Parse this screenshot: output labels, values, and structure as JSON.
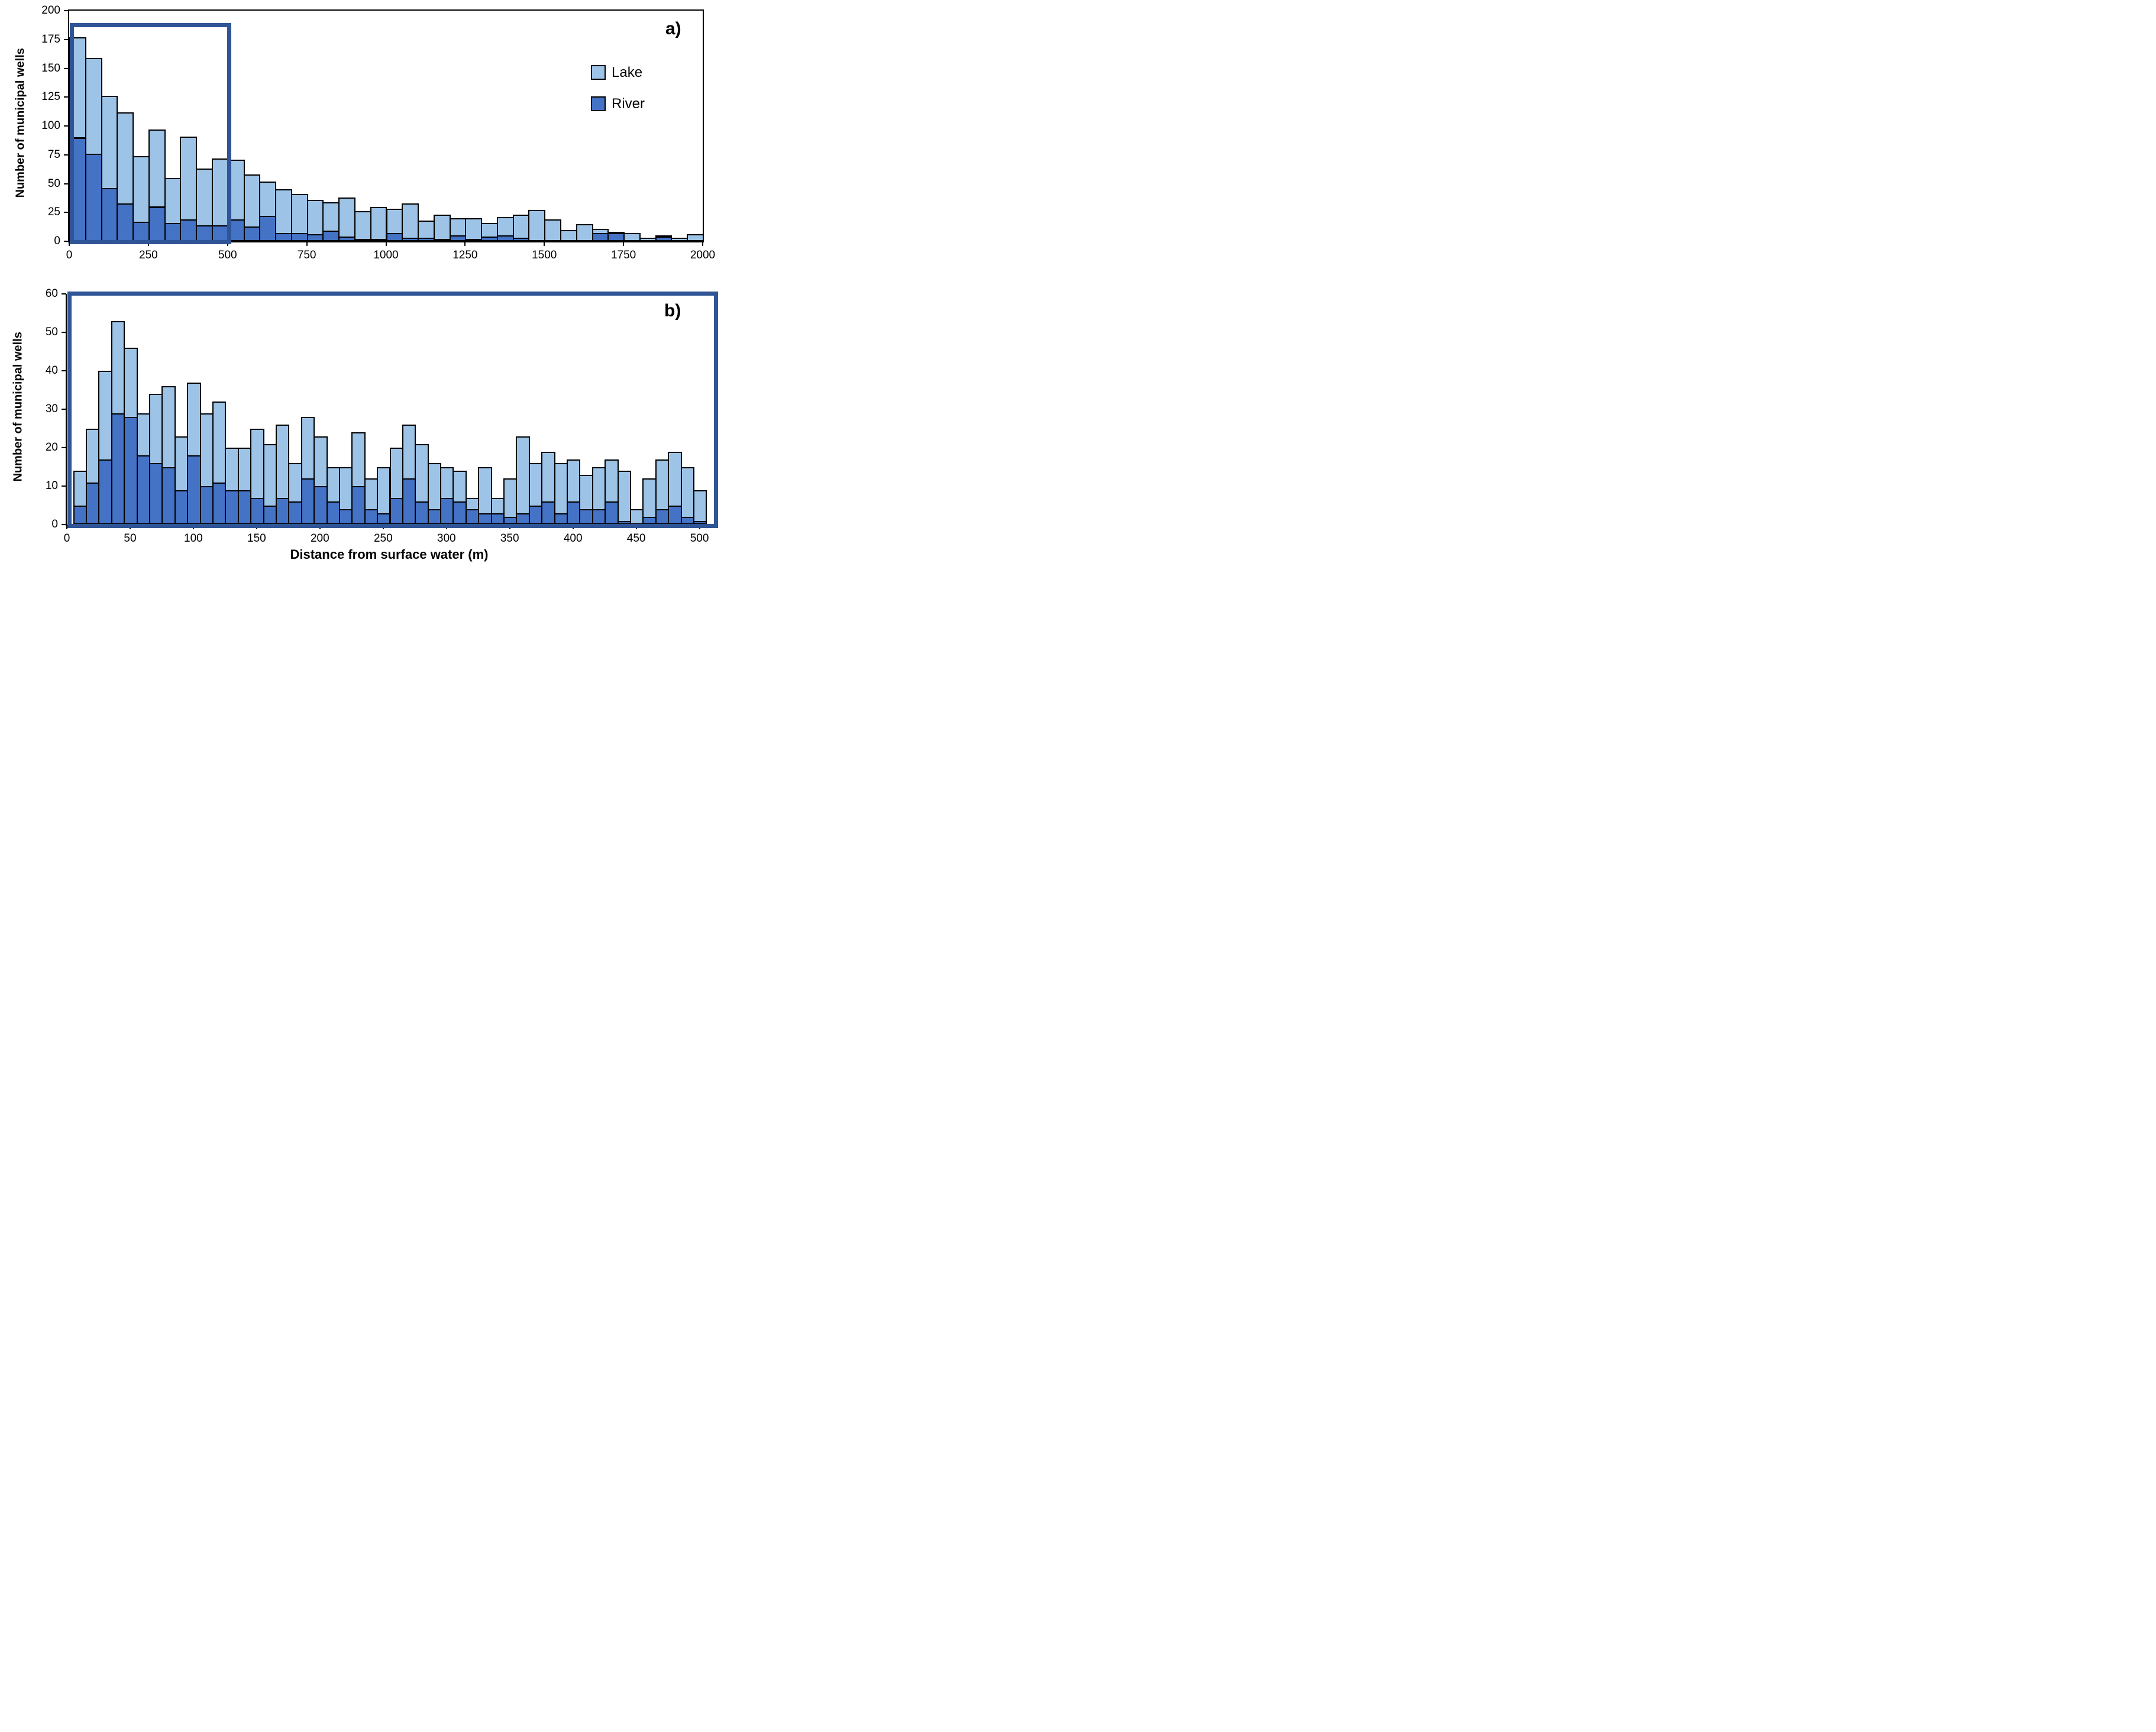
{
  "figure": {
    "background": "#ffffff",
    "axis_color": "#000000",
    "bar_border_color": "#000000"
  },
  "chart_data": [
    {
      "type": "bar",
      "subtype": "stacked-histogram",
      "panel_label": "a)",
      "ylabel": "Number of municipal wells",
      "bin_start": 0,
      "bin_width": 50,
      "xlim": [
        0,
        2000
      ],
      "ylim": [
        0,
        200
      ],
      "xticks": [
        0,
        250,
        500,
        750,
        1000,
        1250,
        1500,
        1750,
        2000
      ],
      "yticks": [
        0,
        25,
        50,
        75,
        100,
        125,
        150,
        175,
        200
      ],
      "grid": "off",
      "legend_position": "upper-right-inside",
      "legend": [
        {
          "label": "Lake",
          "color": "#9DC3E6"
        },
        {
          "label": "River",
          "color": "#4472C4"
        }
      ],
      "series": [
        {
          "name": "River",
          "color": "#4472C4",
          "values": [
            90,
            76,
            46,
            33,
            17,
            30,
            16,
            19,
            14,
            14,
            19,
            13,
            22,
            7,
            7,
            6,
            9,
            4,
            2,
            2,
            7,
            3,
            3,
            2,
            5,
            2,
            4,
            5,
            3,
            1,
            0,
            0,
            0,
            7,
            7,
            1,
            0,
            4,
            0,
            1
          ]
        },
        {
          "name": "Lake",
          "color": "#9DC3E6",
          "values": [
            87,
            83,
            80,
            79,
            57,
            67,
            39,
            72,
            49,
            58,
            52,
            45,
            30,
            38,
            34,
            30,
            25,
            34,
            24,
            28,
            21,
            30,
            15,
            21,
            15,
            18,
            12,
            16,
            20,
            26,
            19,
            10,
            15,
            4,
            1,
            6,
            3,
            1,
            3,
            5
          ]
        }
      ],
      "stack_totals": [
        177,
        159,
        126,
        112,
        74,
        97,
        55,
        91,
        63,
        72,
        71,
        58,
        52,
        45,
        41,
        36,
        34,
        38,
        26,
        30,
        28,
        33,
        18,
        23,
        20,
        20,
        16,
        21,
        23,
        27,
        19,
        10,
        15,
        11,
        8,
        7,
        3,
        5,
        3,
        6
      ],
      "inset_box": {
        "x0": 0,
        "x1": 510,
        "y0": 0,
        "y1": 189,
        "color": "#2F5597"
      }
    },
    {
      "type": "bar",
      "subtype": "stacked-histogram",
      "panel_label": "b)",
      "ylabel": "Number of municipal wells",
      "xlabel": "Distance from surface water (m)",
      "bin_start": 5,
      "bin_width": 10,
      "xlim": [
        0,
        510
      ],
      "ylim": [
        0,
        60
      ],
      "xticks": [
        0,
        50,
        100,
        150,
        200,
        250,
        300,
        350,
        400,
        450,
        500
      ],
      "yticks": [
        0,
        10,
        20,
        30,
        40,
        50,
        60
      ],
      "grid": "off",
      "frame_box_color": "#2F5597",
      "series": [
        {
          "name": "River",
          "color": "#4472C4",
          "values": [
            5,
            11,
            17,
            29,
            28,
            18,
            16,
            15,
            9,
            18,
            10,
            11,
            9,
            9,
            7,
            5,
            7,
            6,
            12,
            10,
            6,
            4,
            10,
            4,
            3,
            7,
            12,
            6,
            4,
            7,
            6,
            4,
            3,
            3,
            2,
            3,
            5,
            6,
            3,
            6,
            4,
            4,
            6,
            1,
            0,
            2,
            4,
            5,
            2,
            1
          ]
        },
        {
          "name": "Lake",
          "color": "#9DC3E6",
          "values": [
            9,
            14,
            23,
            24,
            18,
            11,
            18,
            21,
            14,
            19,
            19,
            21,
            11,
            11,
            18,
            16,
            19,
            10,
            16,
            13,
            9,
            11,
            14,
            8,
            12,
            13,
            14,
            15,
            12,
            8,
            8,
            3,
            12,
            4,
            10,
            20,
            11,
            13,
            13,
            11,
            9,
            11,
            11,
            13,
            4,
            10,
            13,
            14,
            13,
            8
          ]
        }
      ],
      "stack_totals": [
        14,
        25,
        40,
        53,
        46,
        29,
        34,
        36,
        23,
        37,
        29,
        32,
        20,
        20,
        25,
        21,
        26,
        16,
        28,
        23,
        15,
        15,
        24,
        12,
        15,
        20,
        26,
        21,
        16,
        15,
        14,
        7,
        15,
        7,
        12,
        23,
        16,
        19,
        16,
        17,
        13,
        15,
        17,
        14,
        4,
        12,
        17,
        19,
        15,
        9
      ]
    }
  ]
}
